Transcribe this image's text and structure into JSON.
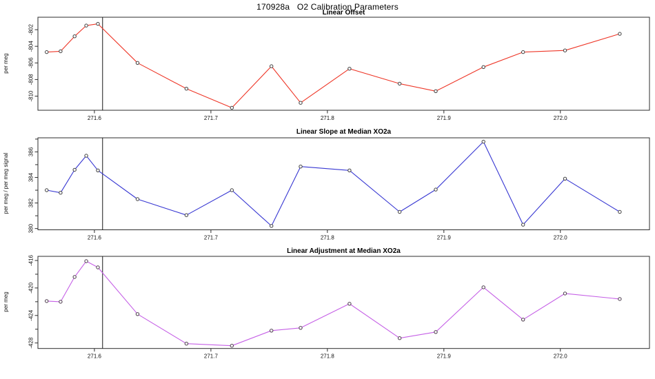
{
  "header": {
    "title": "170928a   O2 Calibration Parameters"
  },
  "chart_data": [
    {
      "type": "line",
      "title": "Linear Offset",
      "ylabel": "per meg",
      "line_color": "#ee3526",
      "marker": "open-circle",
      "marker_stroke": "#3d3d3d",
      "marker_fill": "#ffffff",
      "grid": false,
      "legend": null,
      "x": [
        271.559,
        271.571,
        271.583,
        271.593,
        271.603,
        271.637,
        271.679,
        271.718,
        271.752,
        271.777,
        271.819,
        271.862,
        271.893,
        271.934,
        271.968,
        272.004,
        272.051
      ],
      "values": [
        -804.7,
        -804.6,
        -802.8,
        -801.5,
        -801.3,
        -806.0,
        -809.1,
        -811.4,
        -806.4,
        -810.8,
        -806.7,
        -808.5,
        -809.4,
        -806.5,
        -804.7,
        -804.5,
        -802.5
      ],
      "xlim": [
        271.5515,
        272.0765
      ],
      "ylim": [
        -811.7,
        -800.5
      ],
      "xticks": [
        271.6,
        271.7,
        271.8,
        271.9,
        272.0
      ],
      "xtick_labels": [
        "271.6",
        "271.7",
        "271.8",
        "271.9",
        "272.0"
      ],
      "ytick_values": [
        -810,
        -808,
        -806,
        -804,
        -802
      ],
      "ytick_labels": [
        "-810",
        "-808",
        "-806",
        "-804",
        "-802"
      ],
      "ytick_minor": [],
      "vline_x": 271.607
    },
    {
      "type": "line",
      "title": "Linear Slope at Median XO2a",
      "ylabel": "per meg / per meg signal",
      "line_color": "#3636d2",
      "marker": "open-circle",
      "marker_stroke": "#3d3d3d",
      "marker_fill": "#ffffff",
      "grid": false,
      "legend": null,
      "x": [
        271.559,
        271.571,
        271.583,
        271.593,
        271.603,
        271.637,
        271.679,
        271.718,
        271.752,
        271.777,
        271.819,
        271.862,
        271.893,
        271.934,
        271.968,
        272.004,
        272.051
      ],
      "values": [
        383.0,
        382.8,
        384.6,
        385.7,
        384.55,
        382.3,
        381.05,
        383.0,
        380.2,
        384.85,
        384.55,
        381.3,
        383.05,
        386.8,
        380.3,
        383.9,
        381.3
      ],
      "xlim": [
        271.5515,
        272.0765
      ],
      "ylim": [
        379.9,
        387.1
      ],
      "xticks": [
        271.6,
        271.7,
        271.8,
        271.9,
        272.0
      ],
      "xtick_labels": [
        "271.6",
        "271.7",
        "271.8",
        "271.9",
        "272.0"
      ],
      "ytick_values": [
        380,
        382,
        384,
        386
      ],
      "ytick_labels": [
        "380",
        "382",
        "384",
        "386"
      ],
      "ytick_minor": [
        381,
        383,
        385,
        387
      ],
      "vline_x": 271.607
    },
    {
      "type": "line",
      "title": "Linear Adjustment at Median XO2a",
      "ylabel": "per meg",
      "line_color": "#c55fe6",
      "marker": "open-circle",
      "marker_stroke": "#4a3a4a",
      "marker_fill": "#ffffff",
      "grid": false,
      "legend": null,
      "x": [
        271.559,
        271.571,
        271.583,
        271.593,
        271.603,
        271.637,
        271.679,
        271.718,
        271.752,
        271.777,
        271.819,
        271.862,
        271.893,
        271.934,
        271.968,
        272.004,
        272.051
      ],
      "values": [
        -421.9,
        -422.0,
        -418.4,
        -416.1,
        -417.0,
        -423.8,
        -428.1,
        -428.4,
        -426.2,
        -425.8,
        -422.3,
        -427.3,
        -426.4,
        -419.9,
        -424.6,
        -420.8,
        -421.6
      ],
      "xlim": [
        271.5515,
        272.0765
      ],
      "ylim": [
        -428.8,
        -415.4
      ],
      "xticks": [
        271.6,
        271.7,
        271.8,
        271.9,
        272.0
      ],
      "xtick_labels": [
        "271.6",
        "271.7",
        "271.8",
        "271.9",
        "272.0"
      ],
      "ytick_values": [
        -428,
        -424,
        -420,
        -416
      ],
      "ytick_labels": [
        "-428",
        "-424",
        "-420",
        "-416"
      ],
      "ytick_minor": [
        -426,
        -422,
        -418
      ],
      "vline_x": 271.607
    }
  ]
}
